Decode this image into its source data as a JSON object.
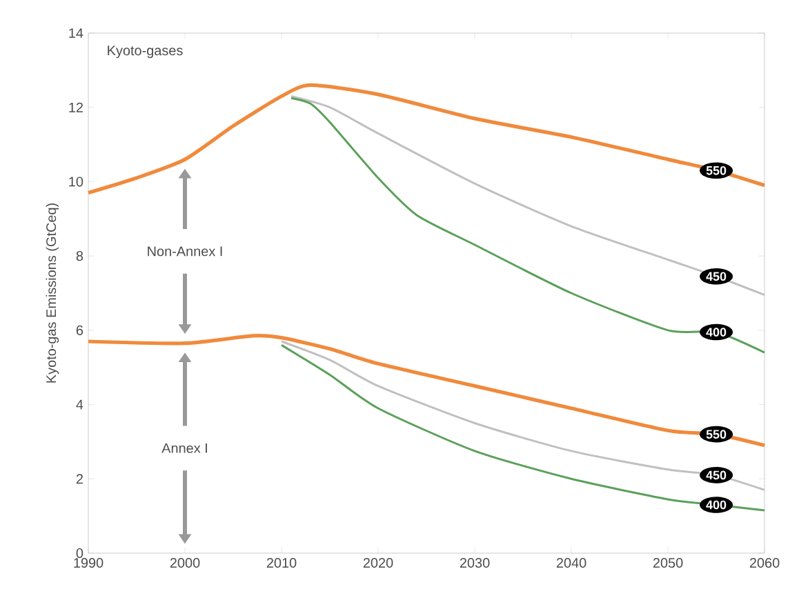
{
  "chart_data": {
    "type": "line",
    "ylabel": "Kyoto-gas Emissions (GtCeq)",
    "annotations": [
      "Kyoto-gases",
      "Non-Annex I",
      "Annex I"
    ],
    "xlim": [
      1990,
      2060
    ],
    "ylim": [
      0,
      14
    ],
    "xticks": [
      1990,
      2000,
      2010,
      2020,
      2030,
      2040,
      2050,
      2060
    ],
    "yticks": [
      0,
      2,
      4,
      6,
      8,
      10,
      12,
      14
    ],
    "grid": false,
    "legend": false,
    "marker": "none",
    "line_style": "solid",
    "series": [
      {
        "name": "550",
        "color": "#f08a3c",
        "x": [
          1990,
          1995,
          2000,
          2005,
          2010,
          2013,
          2020,
          2030,
          2040,
          2050,
          2055,
          2060
        ],
        "values": [
          9.7,
          10.1,
          10.6,
          11.5,
          12.3,
          12.6,
          12.35,
          11.7,
          11.2,
          10.6,
          10.3,
          9.9
        ]
      },
      {
        "name": "450",
        "color": "#c0c0c0",
        "x": [
          2011,
          2015,
          2020,
          2030,
          2040,
          2050,
          2055,
          2060
        ],
        "values": [
          12.3,
          12.0,
          11.3,
          9.95,
          8.8,
          7.9,
          7.45,
          6.95
        ]
      },
      {
        "name": "400",
        "color": "#5aa05a",
        "x": [
          2011,
          2013,
          2015,
          2020,
          2024,
          2030,
          2040,
          2050,
          2055,
          2060
        ],
        "values": [
          12.25,
          12.1,
          11.6,
          10.1,
          9.1,
          8.3,
          7.0,
          6.0,
          5.95,
          5.4
        ]
      },
      {
        "name": "550",
        "color": "#f08a3c",
        "x": [
          1990,
          2000,
          2007,
          2010,
          2015,
          2020,
          2030,
          2040,
          2050,
          2055,
          2060
        ],
        "values": [
          5.7,
          5.65,
          5.85,
          5.8,
          5.5,
          5.1,
          4.5,
          3.9,
          3.3,
          3.2,
          2.9
        ]
      },
      {
        "name": "450",
        "color": "#c0c0c0",
        "x": [
          2010,
          2015,
          2020,
          2030,
          2040,
          2050,
          2055,
          2060
        ],
        "values": [
          5.7,
          5.2,
          4.5,
          3.5,
          2.75,
          2.25,
          2.1,
          1.7
        ]
      },
      {
        "name": "400",
        "color": "#5aa05a",
        "x": [
          2010,
          2015,
          2020,
          2030,
          2040,
          2050,
          2055,
          2060
        ],
        "values": [
          5.6,
          4.8,
          3.9,
          2.75,
          2.0,
          1.45,
          1.3,
          1.15
        ]
      }
    ]
  }
}
